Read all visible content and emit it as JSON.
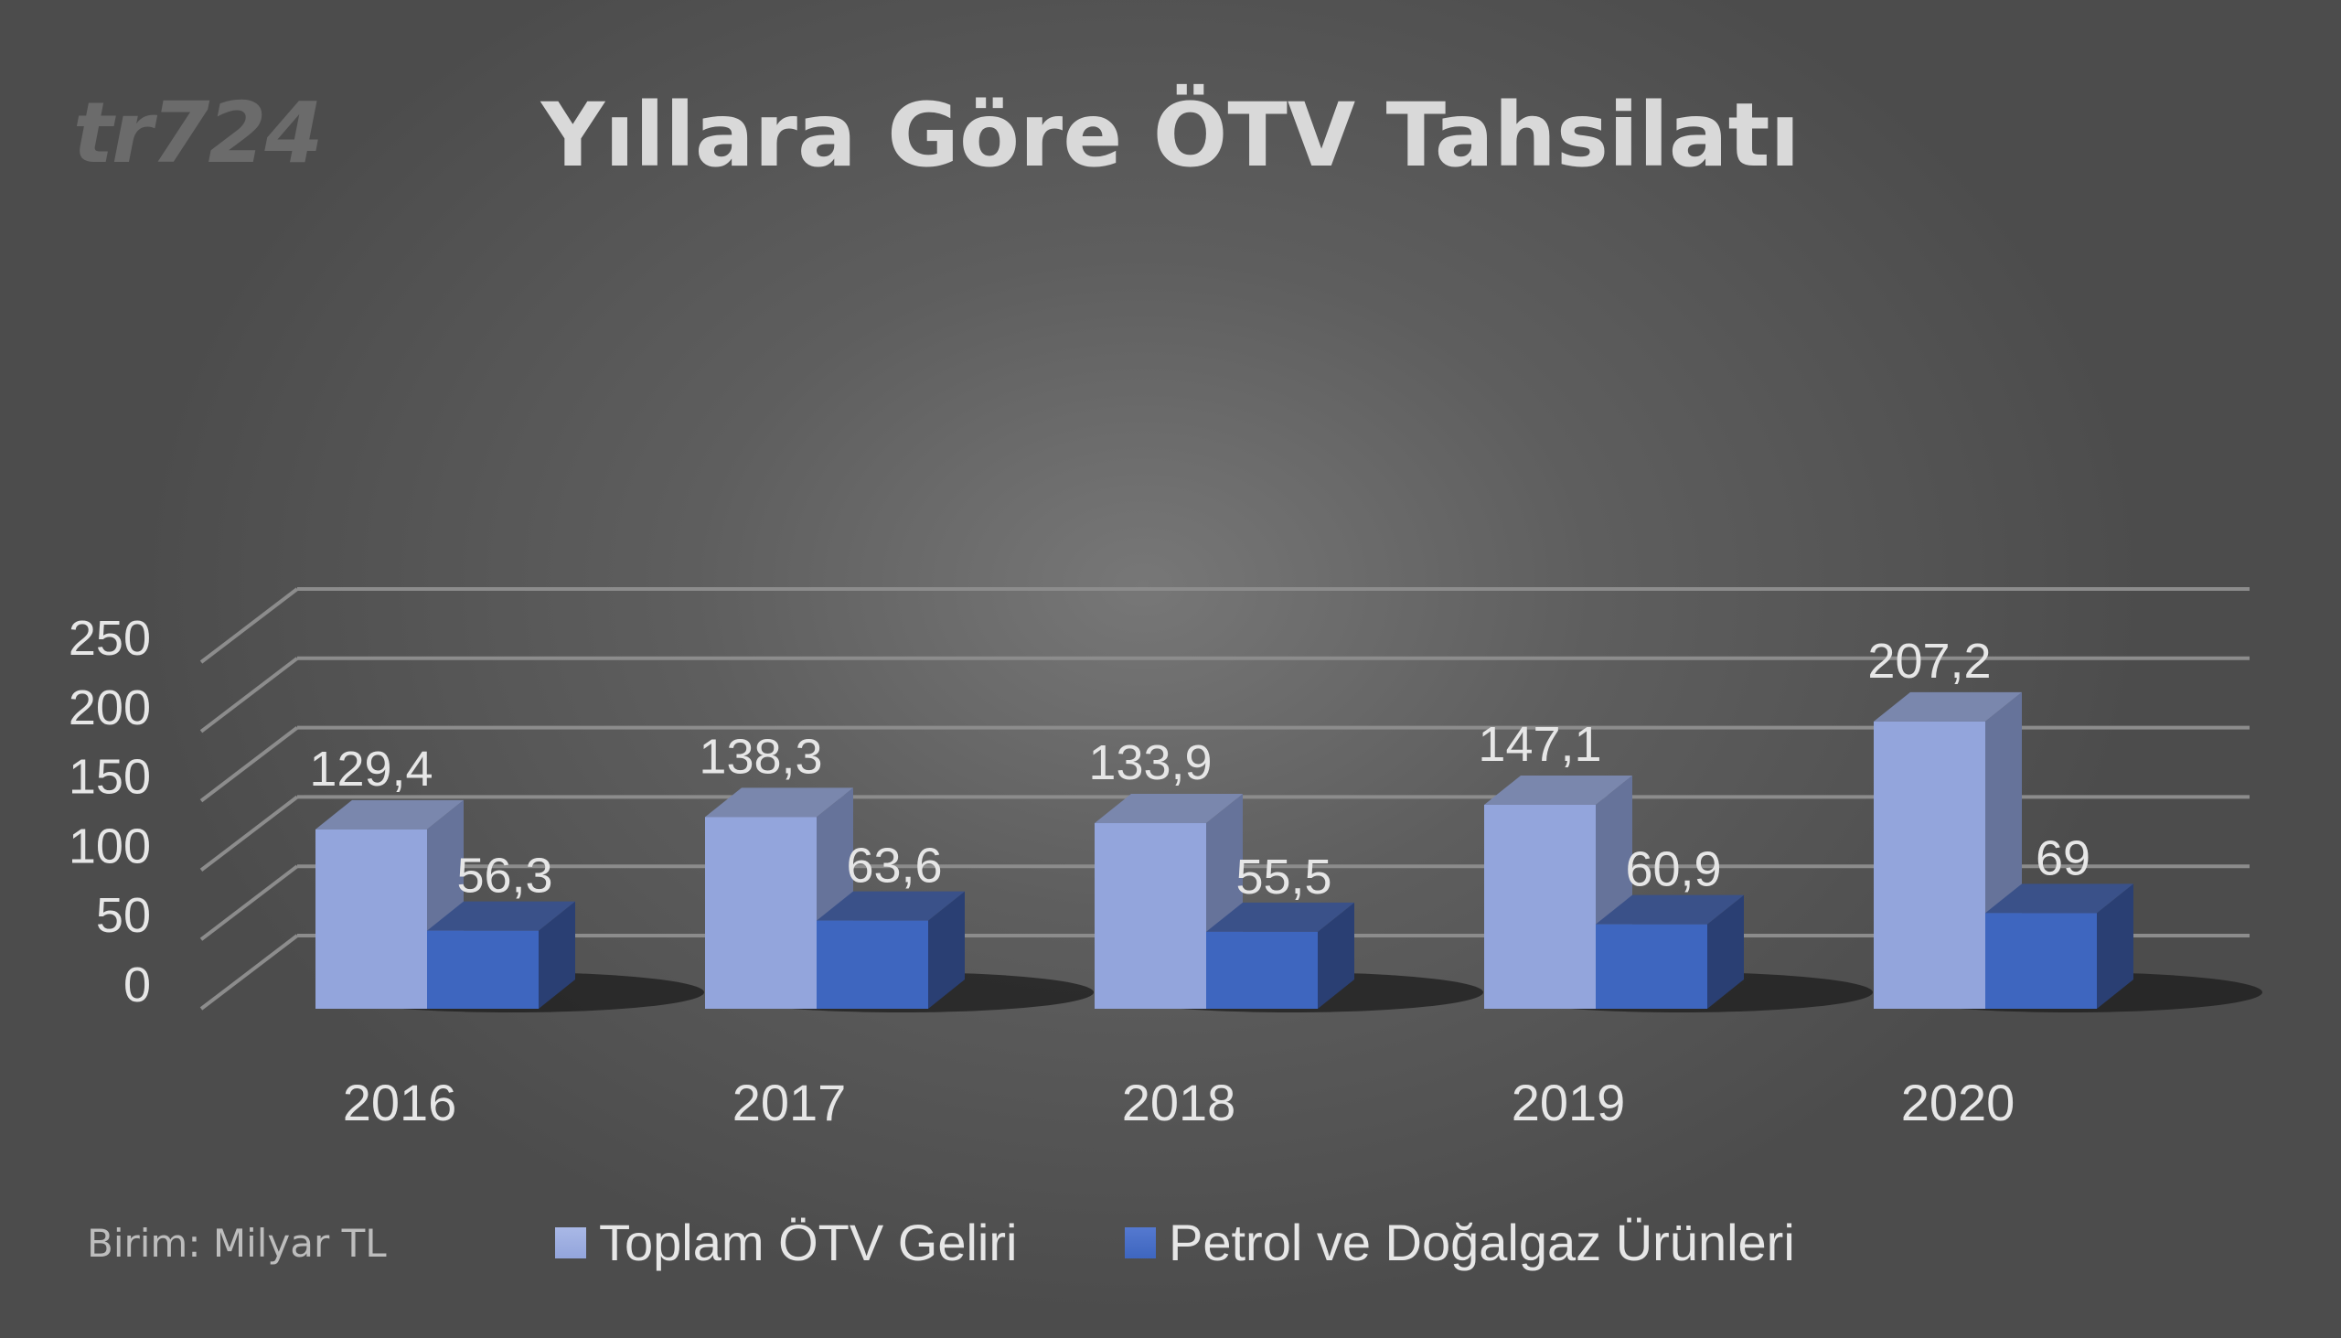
{
  "watermark": "tr724",
  "unit_label": "Birim: Milyar TL",
  "colors": {
    "series1_front": "#93a5dc",
    "series1_side": "#66739a",
    "series1_top": "#7a87ad",
    "series2_front": "#3e66bf",
    "series2_side": "#2a3f73",
    "series2_top": "#3a5189"
  },
  "chart_data": {
    "type": "bar",
    "title": "Yıllara Göre ÖTV Tahsilatı",
    "categories": [
      "2016",
      "2017",
      "2018",
      "2019",
      "2020"
    ],
    "series": [
      {
        "name": "Toplam ÖTV Geliri",
        "values": [
          129.4,
          138.3,
          133.9,
          147.1,
          207.2
        ],
        "labels": [
          "129,4",
          "138,3",
          "133,9",
          "147,1",
          "207,2"
        ]
      },
      {
        "name": "Petrol ve Doğalgaz Ürünleri",
        "values": [
          56.3,
          63.6,
          55.5,
          60.9,
          69
        ],
        "labels": [
          "56,3",
          "63,6",
          "55,5",
          "60,9",
          "69"
        ]
      }
    ],
    "yticks": [
      "0",
      "50",
      "100",
      "150",
      "200",
      "250"
    ],
    "ylim": [
      0,
      250
    ],
    "grid": true,
    "legend": "bottom"
  }
}
